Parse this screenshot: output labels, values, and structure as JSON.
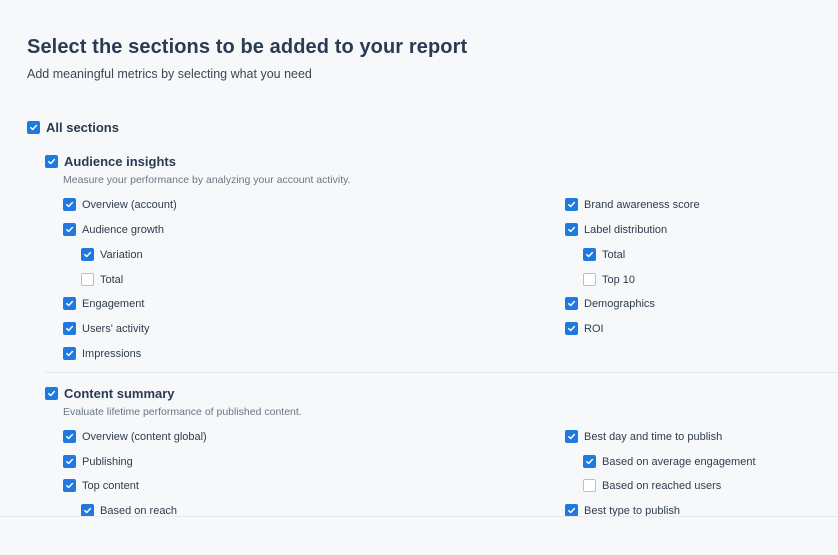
{
  "header": {
    "title": "Select the sections to be added to your report",
    "subtitle": "Add meaningful metrics by selecting what you need"
  },
  "all_sections": {
    "label": "All sections",
    "checked": true
  },
  "audience": {
    "label": "Audience insights",
    "checked": true,
    "description": "Measure your performance by analyzing your account activity.",
    "left": [
      {
        "label": "Overview (account)",
        "checked": true
      },
      {
        "label": "Audience growth",
        "checked": true
      },
      {
        "label": "Variation",
        "checked": true
      },
      {
        "label": "Total",
        "checked": false
      },
      {
        "label": "Engagement",
        "checked": true
      },
      {
        "label": "Users' activity",
        "checked": true
      },
      {
        "label": "Impressions",
        "checked": true
      }
    ],
    "right": [
      {
        "label": "Brand awareness score",
        "checked": true
      },
      {
        "label": "Label distribution",
        "checked": true
      },
      {
        "label": "Total",
        "checked": true
      },
      {
        "label": "Top 10",
        "checked": false
      },
      {
        "label": "Demographics",
        "checked": true
      },
      {
        "label": "ROI",
        "checked": true
      }
    ]
  },
  "content": {
    "label": "Content summary",
    "checked": true,
    "description": "Evaluate lifetime performance of published content.",
    "left": [
      {
        "label": "Overview (content global)",
        "checked": true
      },
      {
        "label": "Publishing",
        "checked": true
      },
      {
        "label": "Top content",
        "checked": true
      },
      {
        "label": "Based on reach",
        "checked": true
      }
    ],
    "right": [
      {
        "label": "Best day and time to publish",
        "checked": true
      },
      {
        "label": "Based on average engagement",
        "checked": true
      },
      {
        "label": "Based on reached users",
        "checked": false
      },
      {
        "label": "Best type to publish",
        "checked": true
      }
    ]
  },
  "colors": {
    "accent": "#1f7ae0",
    "text": "#2a3b52",
    "muted": "#6b7685"
  },
  "icons": {
    "check": "checkmark-icon"
  }
}
